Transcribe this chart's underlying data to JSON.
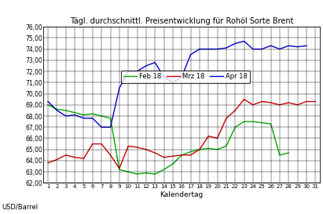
{
  "title": "Tägl. durchschnittl. Preisentwicklung für Rohöl Sorte Brent",
  "xlabel": "Kalendertag",
  "ylabel": "USD/Barrel",
  "ylim": [
    62.0,
    76.0
  ],
  "yticks": [
    62.0,
    63.0,
    64.0,
    65.0,
    66.0,
    67.0,
    68.0,
    69.0,
    70.0,
    71.0,
    72.0,
    73.0,
    74.0,
    75.0,
    76.0
  ],
  "xticks": [
    1,
    2,
    3,
    4,
    5,
    6,
    7,
    8,
    9,
    10,
    11,
    12,
    13,
    14,
    15,
    16,
    17,
    18,
    19,
    20,
    21,
    22,
    23,
    24,
    25,
    26,
    27,
    28,
    29,
    30,
    31
  ],
  "feb18": {
    "label": "Feb 18",
    "color": "#00AA00",
    "x": [
      1,
      2,
      3,
      4,
      5,
      6,
      7,
      8,
      9,
      10,
      11,
      12,
      13,
      14,
      15,
      16,
      17,
      18,
      19,
      20,
      21,
      22,
      23,
      24,
      25,
      26,
      27,
      28
    ],
    "y": [
      69.0,
      68.6,
      68.5,
      68.3,
      68.1,
      68.2,
      68.0,
      67.8,
      63.2,
      63.0,
      62.8,
      62.9,
      62.8,
      63.2,
      63.7,
      64.5,
      64.8,
      65.0,
      65.1,
      65.0,
      65.3,
      67.0,
      67.5,
      67.5,
      67.4,
      67.3,
      64.5,
      64.7
    ]
  },
  "mrz18": {
    "label": "Mrz 18",
    "color": "#CC0000",
    "x": [
      1,
      2,
      3,
      4,
      5,
      6,
      7,
      8,
      9,
      10,
      11,
      12,
      13,
      14,
      15,
      16,
      17,
      18,
      19,
      20,
      21,
      22,
      23,
      24,
      25,
      26,
      27,
      28,
      29,
      30,
      31
    ],
    "y": [
      63.8,
      64.1,
      64.5,
      64.3,
      64.2,
      65.5,
      65.5,
      64.5,
      63.3,
      65.3,
      65.2,
      65.0,
      64.7,
      64.3,
      64.4,
      64.5,
      64.5,
      65.0,
      66.2,
      66.0,
      67.8,
      68.5,
      69.5,
      69.0,
      69.3,
      69.2,
      69.0,
      69.2,
      69.0,
      69.3,
      69.3
    ]
  },
  "apr18": {
    "label": "Apr 18",
    "color": "#0000CC",
    "x": [
      1,
      2,
      3,
      4,
      5,
      6,
      7,
      8,
      9,
      10,
      11,
      12,
      13,
      14,
      15,
      16,
      17,
      18,
      19,
      20,
      21,
      22,
      23,
      24,
      25,
      26,
      27,
      28,
      29,
      30
    ],
    "y": [
      69.3,
      68.5,
      68.0,
      68.1,
      67.8,
      67.8,
      67.0,
      67.0,
      70.5,
      72.0,
      72.0,
      72.5,
      72.8,
      71.5,
      71.0,
      71.5,
      73.5,
      74.0,
      74.0,
      74.0,
      74.1,
      74.5,
      74.7,
      74.0,
      74.0,
      74.3,
      74.0,
      74.3,
      74.2,
      74.3
    ]
  },
  "background": "#FFFFFF",
  "grid_color": "#000000"
}
